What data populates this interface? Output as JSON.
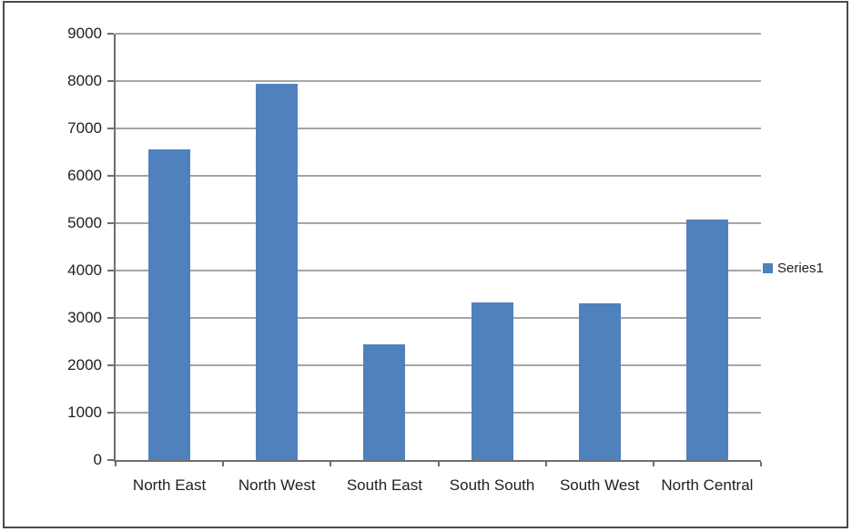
{
  "window": {
    "background_color": "#ffffff",
    "frame_border_color": "#4b4b4b"
  },
  "chart_data": {
    "type": "bar",
    "title": "",
    "xlabel": "",
    "ylabel": "",
    "categories": [
      "North East",
      "North West",
      "South East",
      "South South",
      "South West",
      "North Central"
    ],
    "series": [
      {
        "name": "Series1",
        "color": "#4f81bd",
        "values": [
          6550,
          7950,
          2450,
          3330,
          3300,
          5080
        ]
      }
    ],
    "ylim": [
      0,
      9000
    ],
    "ytick_interval": 1000,
    "ytick_labels": [
      "0",
      "1000",
      "2000",
      "3000",
      "4000",
      "5000",
      "6000",
      "7000",
      "8000",
      "9000"
    ],
    "grid": "horizontal",
    "gridline_color": "#a5a5a5",
    "axis_color": "#6e6e6e",
    "text_color": "#1f1f1f",
    "legend_position": "right"
  },
  "legend": {
    "marker_icon": "series-color-square",
    "marker_color": "#4f81bd"
  }
}
